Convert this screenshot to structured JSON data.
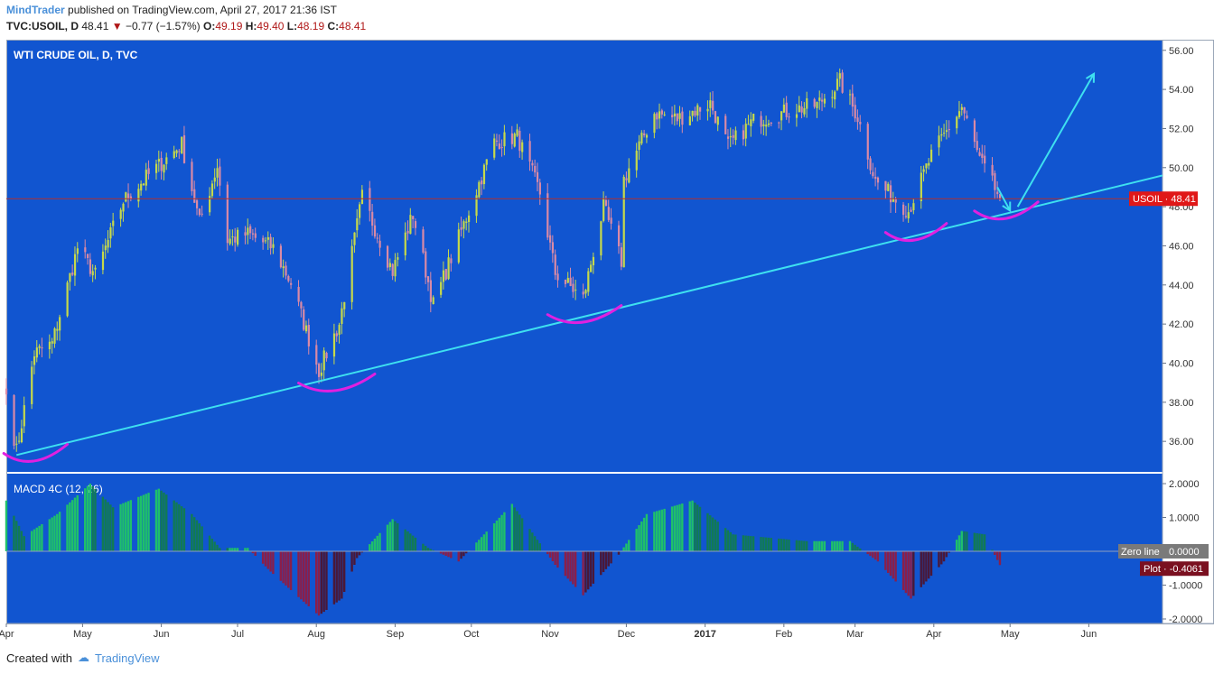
{
  "header": {
    "author": "MindTrader",
    "published_text": "published on TradingView.com, April 27, 2017 21:36 IST",
    "symbol": "TVC:USOIL, D",
    "last": "48.41",
    "change": "−0.77 (−1.57%)",
    "o_label": "O:",
    "o": "49.19",
    "h_label": "H:",
    "h": "49.40",
    "l_label": "L:",
    "l": "48.19",
    "c_label": "C:",
    "c": "48.41"
  },
  "footer": {
    "created_with": "Created with",
    "brand": "TradingView"
  },
  "colors": {
    "background": "#1155d0",
    "bullish": "#c6d94a",
    "bearish": "#d98aa6",
    "trendline": "#3ee0f0",
    "highlight": "#e020e0",
    "price_line": "#b03030",
    "macd_up_strong": "#1fc06a",
    "macd_up_weak": "#117a55",
    "macd_down_strong": "#8a1f4a",
    "macd_down_weak": "#4a1838"
  },
  "chart_data": [
    {
      "type": "candlestick",
      "title": "WTI CRUDE OIL, D, TVC",
      "ylim": [
        34.5,
        56.5
      ],
      "y_ticks": [
        "36.00",
        "38.00",
        "40.00",
        "42.00",
        "44.00",
        "46.00",
        "48.00",
        "50.00",
        "52.00",
        "54.00",
        "56.00"
      ],
      "x_ticks": [
        "Apr",
        "May",
        "Jun",
        "Jul",
        "Aug",
        "Sep",
        "Oct",
        "Nov",
        "Dec",
        "2017",
        "Feb",
        "Mar",
        "Apr",
        "May",
        "Jun"
      ],
      "x_range": [
        "2016-04-01",
        "2017-06-30"
      ],
      "price_label": "USOIL",
      "last_price": 48.41,
      "close_path": [
        {
          "date": "2016-04-01",
          "close": 38.4
        },
        {
          "date": "2016-04-05",
          "close": 35.5
        },
        {
          "date": "2016-04-12",
          "close": 40.5
        },
        {
          "date": "2016-04-19",
          "close": 41.0
        },
        {
          "date": "2016-04-29",
          "close": 45.9
        },
        {
          "date": "2016-05-06",
          "close": 44.5
        },
        {
          "date": "2016-05-17",
          "close": 48.3
        },
        {
          "date": "2016-05-26",
          "close": 49.5
        },
        {
          "date": "2016-06-09",
          "close": 51.2
        },
        {
          "date": "2016-06-16",
          "close": 47.2
        },
        {
          "date": "2016-06-23",
          "close": 50.1
        },
        {
          "date": "2016-06-27",
          "close": 46.3
        },
        {
          "date": "2016-07-05",
          "close": 46.6
        },
        {
          "date": "2016-07-15",
          "close": 45.9
        },
        {
          "date": "2016-07-22",
          "close": 44.1
        },
        {
          "date": "2016-08-02",
          "close": 39.6
        },
        {
          "date": "2016-08-10",
          "close": 42.0
        },
        {
          "date": "2016-08-19",
          "close": 48.5
        },
        {
          "date": "2016-08-31",
          "close": 44.7
        },
        {
          "date": "2016-09-08",
          "close": 47.6
        },
        {
          "date": "2016-09-16",
          "close": 43.0
        },
        {
          "date": "2016-09-28",
          "close": 47.1
        },
        {
          "date": "2016-10-10",
          "close": 51.3
        },
        {
          "date": "2016-10-19",
          "close": 51.6
        },
        {
          "date": "2016-10-28",
          "close": 48.7
        },
        {
          "date": "2016-11-03",
          "close": 44.6
        },
        {
          "date": "2016-11-14",
          "close": 43.3
        },
        {
          "date": "2016-11-18",
          "close": 45.7
        },
        {
          "date": "2016-11-22",
          "close": 48.0
        },
        {
          "date": "2016-11-29",
          "close": 45.2
        },
        {
          "date": "2016-11-30",
          "close": 49.4
        },
        {
          "date": "2016-12-12",
          "close": 52.8
        },
        {
          "date": "2016-12-21",
          "close": 52.5
        },
        {
          "date": "2017-01-03",
          "close": 53.3
        },
        {
          "date": "2017-01-10",
          "close": 51.1
        },
        {
          "date": "2017-01-20",
          "close": 52.4
        },
        {
          "date": "2017-02-06",
          "close": 53.0
        },
        {
          "date": "2017-02-14",
          "close": 53.2
        },
        {
          "date": "2017-02-23",
          "close": 54.4
        },
        {
          "date": "2017-03-02",
          "close": 52.6
        },
        {
          "date": "2017-03-09",
          "close": 49.3
        },
        {
          "date": "2017-03-22",
          "close": 47.8
        },
        {
          "date": "2017-03-31",
          "close": 50.6
        },
        {
          "date": "2017-04-12",
          "close": 53.1
        },
        {
          "date": "2017-04-19",
          "close": 50.4
        },
        {
          "date": "2017-04-27",
          "close": 48.41
        }
      ],
      "trendline": [
        {
          "date": "2016-04-05",
          "value": 35.3
        },
        {
          "date": "2017-06-30",
          "value": 49.6
        }
      ],
      "projection_arrow": [
        {
          "date": "2017-05-04",
          "value": 48.0
        },
        {
          "date": "2017-06-03",
          "value": 54.8
        }
      ],
      "pullback_arrow": [
        {
          "date": "2017-04-26",
          "value": 49.0
        },
        {
          "date": "2017-05-01",
          "value": 47.8
        }
      ],
      "highlighted_lows": [
        {
          "date_from": "2016-03-31",
          "date_to": "2016-04-25",
          "value": 35.2
        },
        {
          "date_from": "2016-07-25",
          "date_to": "2016-08-24",
          "value": 38.8
        },
        {
          "date_from": "2016-10-31",
          "date_to": "2016-11-29",
          "value": 42.3
        },
        {
          "date_from": "2017-03-13",
          "date_to": "2017-04-06",
          "value": 46.5
        },
        {
          "date_from": "2017-04-17",
          "date_to": "2017-05-12",
          "value": 47.6
        }
      ]
    },
    {
      "type": "bar",
      "title": "MACD 4C (12, 26)",
      "ylim": [
        -2.0,
        2.0
      ],
      "y_ticks": [
        "2.0000",
        "1.0000",
        "-1.0000",
        "-2.0000"
      ],
      "labels": [
        {
          "text": "Zero line",
          "value": "0.0000"
        },
        {
          "text": "Plot",
          "value": "-0.4061"
        }
      ],
      "plot_value": -0.4061,
      "path": [
        {
          "date": "2016-04-01",
          "value": 1.5
        },
        {
          "date": "2016-04-08",
          "value": 0.45
        },
        {
          "date": "2016-04-21",
          "value": 1.1
        },
        {
          "date": "2016-05-04",
          "value": 2.0
        },
        {
          "date": "2016-05-13",
          "value": 1.3
        },
        {
          "date": "2016-05-31",
          "value": 1.85
        },
        {
          "date": "2016-06-13",
          "value": 1.1
        },
        {
          "date": "2016-06-24",
          "value": 0.1
        },
        {
          "date": "2016-07-05",
          "value": 0.1
        },
        {
          "date": "2016-07-14",
          "value": -0.6
        },
        {
          "date": "2016-08-02",
          "value": -1.9
        },
        {
          "date": "2016-08-11",
          "value": -1.4
        },
        {
          "date": "2016-08-17",
          "value": -0.2
        },
        {
          "date": "2016-08-31",
          "value": 0.95
        },
        {
          "date": "2016-09-14",
          "value": 0.1
        },
        {
          "date": "2016-09-26",
          "value": -0.3
        },
        {
          "date": "2016-10-06",
          "value": 0.5
        },
        {
          "date": "2016-10-17",
          "value": 1.4
        },
        {
          "date": "2016-11-03",
          "value": -0.4
        },
        {
          "date": "2016-11-14",
          "value": -1.3
        },
        {
          "date": "2016-11-28",
          "value": -0.1
        },
        {
          "date": "2016-12-09",
          "value": 1.1
        },
        {
          "date": "2016-12-27",
          "value": 1.5
        },
        {
          "date": "2017-01-12",
          "value": 0.5
        },
        {
          "date": "2017-02-10",
          "value": 0.3
        },
        {
          "date": "2017-02-27",
          "value": 0.3
        },
        {
          "date": "2017-03-10",
          "value": -0.3
        },
        {
          "date": "2017-03-23",
          "value": -1.4
        },
        {
          "date": "2017-04-05",
          "value": -0.3
        },
        {
          "date": "2017-04-12",
          "value": 0.6
        },
        {
          "date": "2017-04-21",
          "value": 0.5
        },
        {
          "date": "2017-04-27",
          "value": -0.41
        }
      ]
    }
  ]
}
